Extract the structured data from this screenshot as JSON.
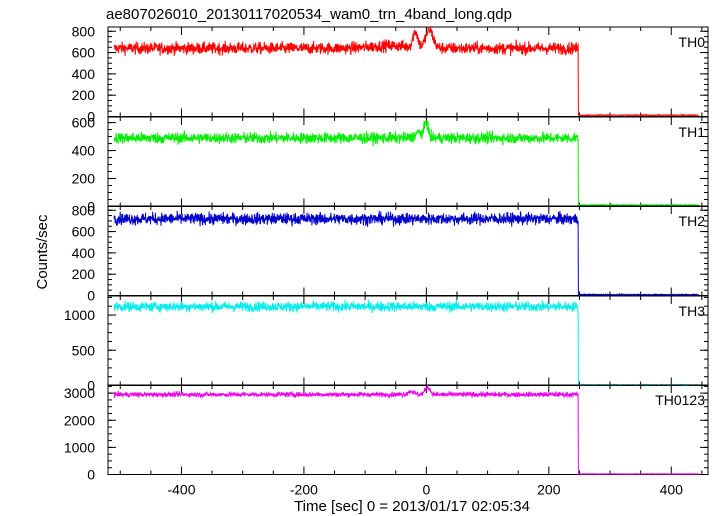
{
  "chart_data": {
    "type": "line",
    "title": "ae807026010_20130117020534_wam0_trn_4band_long.qdp",
    "xlabel": "Time [sec] 0 = 2013/01/17 02:05:34",
    "ylabel": "Counts/sec",
    "xlim": [
      -520,
      460
    ],
    "x_ticks": [
      -400,
      -200,
      0,
      200,
      400
    ],
    "data_x_range": [
      -510,
      445
    ],
    "drop_time": 248,
    "panels": [
      {
        "name": "TH0",
        "color": "#ff0000",
        "ylim": [
          0,
          840
        ],
        "y_ticks": [
          0,
          200,
          400,
          600,
          800
        ],
        "y_tick_labels": [
          "0",
          "200",
          "400",
          "600",
          "800"
        ],
        "baseline": 640,
        "noise": 28,
        "after_level": 12,
        "features": [
          {
            "t": -18,
            "height": 150,
            "width": 4
          },
          {
            "t": 5,
            "height": 170,
            "width": 6
          },
          {
            "t": -60,
            "height": 25,
            "width": 30
          }
        ]
      },
      {
        "name": "TH1",
        "color": "#00ee00",
        "ylim": [
          0,
          640
        ],
        "y_ticks": [
          0,
          200,
          400,
          600
        ],
        "y_tick_labels": [
          "0",
          "200",
          "400",
          "600"
        ],
        "baseline": 490,
        "noise": 20,
        "after_level": 10,
        "features": [
          {
            "t": -12,
            "height": 40,
            "width": 6
          },
          {
            "t": 0,
            "height": 110,
            "width": 3
          }
        ]
      },
      {
        "name": "TH2",
        "color": "#0000cc",
        "ylim": [
          0,
          840
        ],
        "y_ticks": [
          0,
          200,
          400,
          600,
          800
        ],
        "y_tick_labels": [
          "0",
          "200",
          "400",
          "600",
          "800"
        ],
        "baseline": 720,
        "noise": 28,
        "after_level": 8,
        "features": []
      },
      {
        "name": "TH3",
        "color": "#00eeee",
        "ylim": [
          0,
          1270
        ],
        "y_ticks": [
          0,
          500,
          1000
        ],
        "y_tick_labels": [
          "0",
          "500",
          "1000"
        ],
        "baseline": 1120,
        "noise": 35,
        "after_level": 8,
        "features": []
      },
      {
        "name": "TH0123",
        "color": "#ee00ee",
        "ylim": [
          0,
          3300
        ],
        "y_ticks": [
          0,
          1000,
          2000,
          3000
        ],
        "y_tick_labels": [
          "0",
          "1000",
          "2000",
          "3000"
        ],
        "baseline": 2950,
        "noise": 45,
        "after_level": 20,
        "features": [
          {
            "t": -25,
            "height": 120,
            "width": 5
          },
          {
            "t": 2,
            "height": 280,
            "width": 4
          }
        ]
      }
    ]
  }
}
